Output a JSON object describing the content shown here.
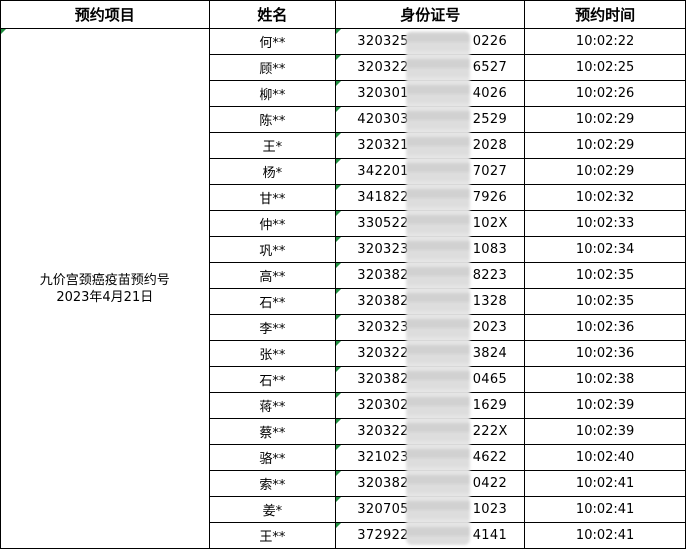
{
  "headers": [
    "预约项目",
    "姓名",
    "身份证号",
    "预约时间"
  ],
  "project": {
    "line1": "九价宫颈癌疫苗预约号",
    "line2": "2023年4月21日"
  },
  "rows": [
    {
      "name": "何**",
      "id_prefix": "320325",
      "id_suffix": "0226",
      "time": "10:02:22"
    },
    {
      "name": "顾**",
      "id_prefix": "320322",
      "id_suffix": "6527",
      "time": "10:02:25"
    },
    {
      "name": "柳**",
      "id_prefix": "320301",
      "id_suffix": "4026",
      "time": "10:02:26"
    },
    {
      "name": "陈**",
      "id_prefix": "420303",
      "id_suffix": "2529",
      "time": "10:02:29"
    },
    {
      "name": "王*",
      "id_prefix": "320321",
      "id_suffix": "2028",
      "time": "10:02:29"
    },
    {
      "name": "杨*",
      "id_prefix": "342201",
      "id_suffix": "7027",
      "time": "10:02:29"
    },
    {
      "name": "甘**",
      "id_prefix": "341822",
      "id_suffix": "7926",
      "time": "10:02:32"
    },
    {
      "name": "仲**",
      "id_prefix": "330522",
      "id_suffix": "102X",
      "time": "10:02:33"
    },
    {
      "name": "巩**",
      "id_prefix": "320323",
      "id_suffix": "1083",
      "time": "10:02:34"
    },
    {
      "name": "高**",
      "id_prefix": "320382",
      "id_suffix": "8223",
      "time": "10:02:35"
    },
    {
      "name": "石**",
      "id_prefix": "320382",
      "id_suffix": "1328",
      "time": "10:02:35"
    },
    {
      "name": "李**",
      "id_prefix": "320323",
      "id_suffix": "2023",
      "time": "10:02:36"
    },
    {
      "name": "张**",
      "id_prefix": "320322",
      "id_suffix": "3824",
      "time": "10:02:36"
    },
    {
      "name": "石**",
      "id_prefix": "320382",
      "id_suffix": "0465",
      "time": "10:02:38"
    },
    {
      "name": "蒋**",
      "id_prefix": "320302",
      "id_suffix": "1629",
      "time": "10:02:39"
    },
    {
      "name": "蔡**",
      "id_prefix": "320322",
      "id_suffix": "222X",
      "time": "10:02:39"
    },
    {
      "name": "骆**",
      "id_prefix": "321023",
      "id_suffix": "4622",
      "time": "10:02:40"
    },
    {
      "name": "索**",
      "id_prefix": "320382",
      "id_suffix": "0422",
      "time": "10:02:41"
    },
    {
      "name": "姜*",
      "id_prefix": "320705",
      "id_suffix": "1023",
      "time": "10:02:41"
    },
    {
      "name": "王**",
      "id_prefix": "372922",
      "id_suffix": "4141",
      "time": "10:02:41"
    }
  ]
}
